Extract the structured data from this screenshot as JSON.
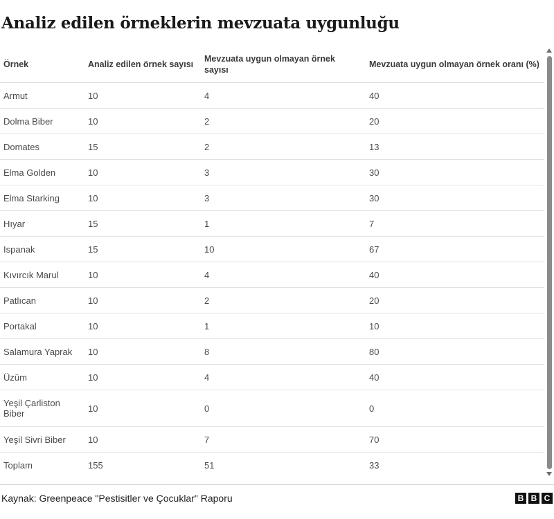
{
  "title": "Analiz edilen örneklerin mevzuata uygunluğu",
  "table": {
    "headers": [
      "Örnek",
      "Analiz edilen örnek sayısı",
      "Mevzuata uygun olmayan örnek sayısı",
      "Mevzuata uygun olmayan örnek oranı (%)"
    ],
    "rows": [
      [
        "Armut",
        "10",
        "4",
        "40"
      ],
      [
        "Dolma Biber",
        "10",
        "2",
        "20"
      ],
      [
        "Domates",
        "15",
        "2",
        "13"
      ],
      [
        "Elma Golden",
        "10",
        "3",
        "30"
      ],
      [
        "Elma Starking",
        "10",
        "3",
        "30"
      ],
      [
        "Hıyar",
        "15",
        "1",
        "7"
      ],
      [
        "Ispanak",
        "15",
        "10",
        "67"
      ],
      [
        "Kıvırcık Marul",
        "10",
        "4",
        "40"
      ],
      [
        "Patlıcan",
        "10",
        "2",
        "20"
      ],
      [
        "Portakal",
        "10",
        "1",
        "10"
      ],
      [
        "Salamura Yaprak",
        "10",
        "8",
        "80"
      ],
      [
        "Üzüm",
        "10",
        "4",
        "40"
      ],
      [
        "Yeşil Çarliston Biber",
        "10",
        "0",
        "0"
      ],
      [
        "Yeşil Sivri Biber",
        "10",
        "7",
        "70"
      ],
      [
        "Toplam",
        "155",
        "51",
        "33"
      ]
    ]
  },
  "footer": {
    "source": "Kaynak: Greenpeace \"Pestisitler ve Çocuklar\" Raporu",
    "logo_letters": [
      "B",
      "B",
      "C"
    ]
  }
}
